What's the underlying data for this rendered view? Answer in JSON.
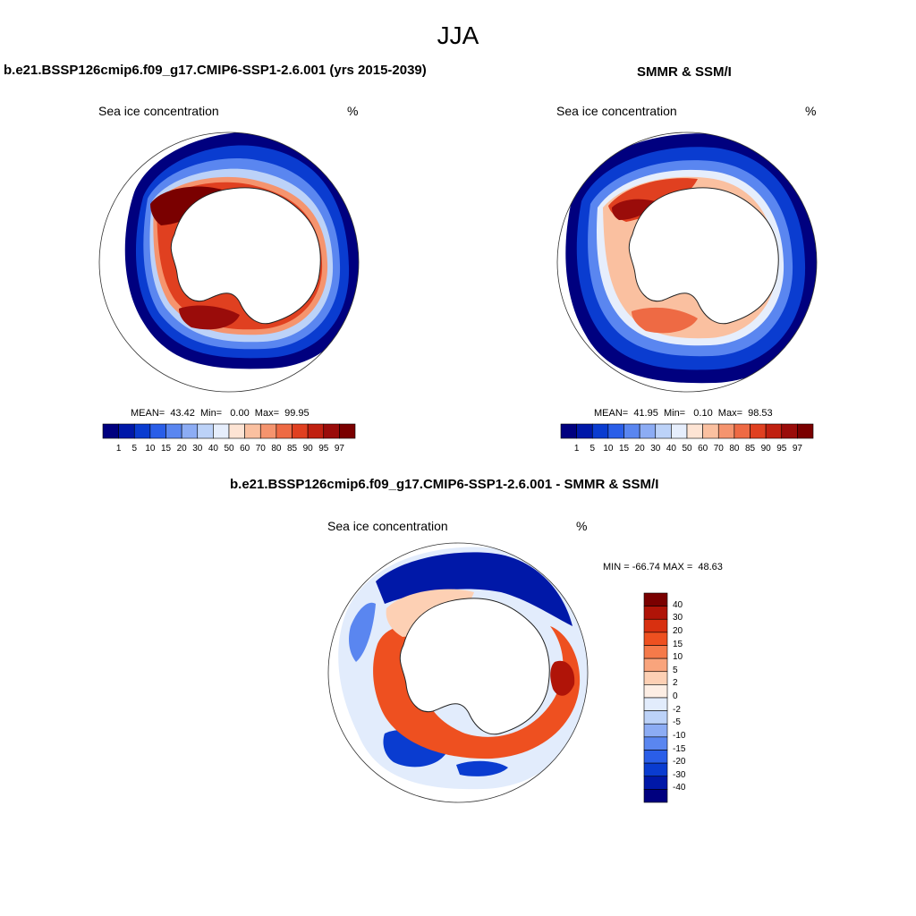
{
  "figure_title": "JJA",
  "panels": [
    {
      "id": "model",
      "title": "b.e21.BSSP126cmip6.f09_g17.CMIP6-SSP1-2.6.001 (yrs 2015-2039)",
      "left_label": "Sea ice concentration",
      "right_label": "%",
      "stats": "MEAN=  43.42  Min=   0.00  Max=  99.95",
      "colorbar_labels": [
        "1",
        "5",
        "10",
        "15",
        "20",
        "30",
        "40",
        "50",
        "60",
        "70",
        "80",
        "85",
        "90",
        "95",
        "97"
      ]
    },
    {
      "id": "obs",
      "title": "SMMR & SSM/I",
      "left_label": "Sea ice concentration",
      "right_label": "%",
      "stats": "MEAN=  41.95  Min=   0.10  Max=  98.53",
      "colorbar_labels": [
        "1",
        "5",
        "10",
        "15",
        "20",
        "30",
        "40",
        "50",
        "60",
        "70",
        "80",
        "85",
        "90",
        "95",
        "97"
      ]
    },
    {
      "id": "diff",
      "title": "b.e21.BSSP126cmip6.f09_g17.CMIP6-SSP1-2.6.001 - SMMR & SSM/I",
      "left_label": "Sea ice concentration",
      "right_label": "%",
      "stats": "MIN = -66.74 MAX =  48.63",
      "colorbar_labels": [
        "40",
        "30",
        "20",
        "15",
        "10",
        "5",
        "2",
        "0",
        "-2",
        "-5",
        "-10",
        "-15",
        "-20",
        "-30",
        "-40"
      ]
    }
  ],
  "colors": {
    "concentration": [
      "#00007f",
      "#0018a8",
      "#0a3cd0",
      "#2a5ee8",
      "#5a86f0",
      "#8cacf4",
      "#bcd2f8",
      "#e6eefc",
      "#fde4d4",
      "#fac0a0",
      "#f5946e",
      "#ee6a44",
      "#e04020",
      "#c02010",
      "#9a0c0a",
      "#7a0000"
    ],
    "difference": [
      "#7a0000",
      "#b01408",
      "#d83010",
      "#ee5020",
      "#f57a4a",
      "#f9a47c",
      "#fdd0b4",
      "#fdeee4",
      "#e2ecfc",
      "#bcd2f8",
      "#8cacf4",
      "#5a86f0",
      "#2a5ee8",
      "#0a3cd0",
      "#0018a8",
      "#00007f"
    ]
  }
}
